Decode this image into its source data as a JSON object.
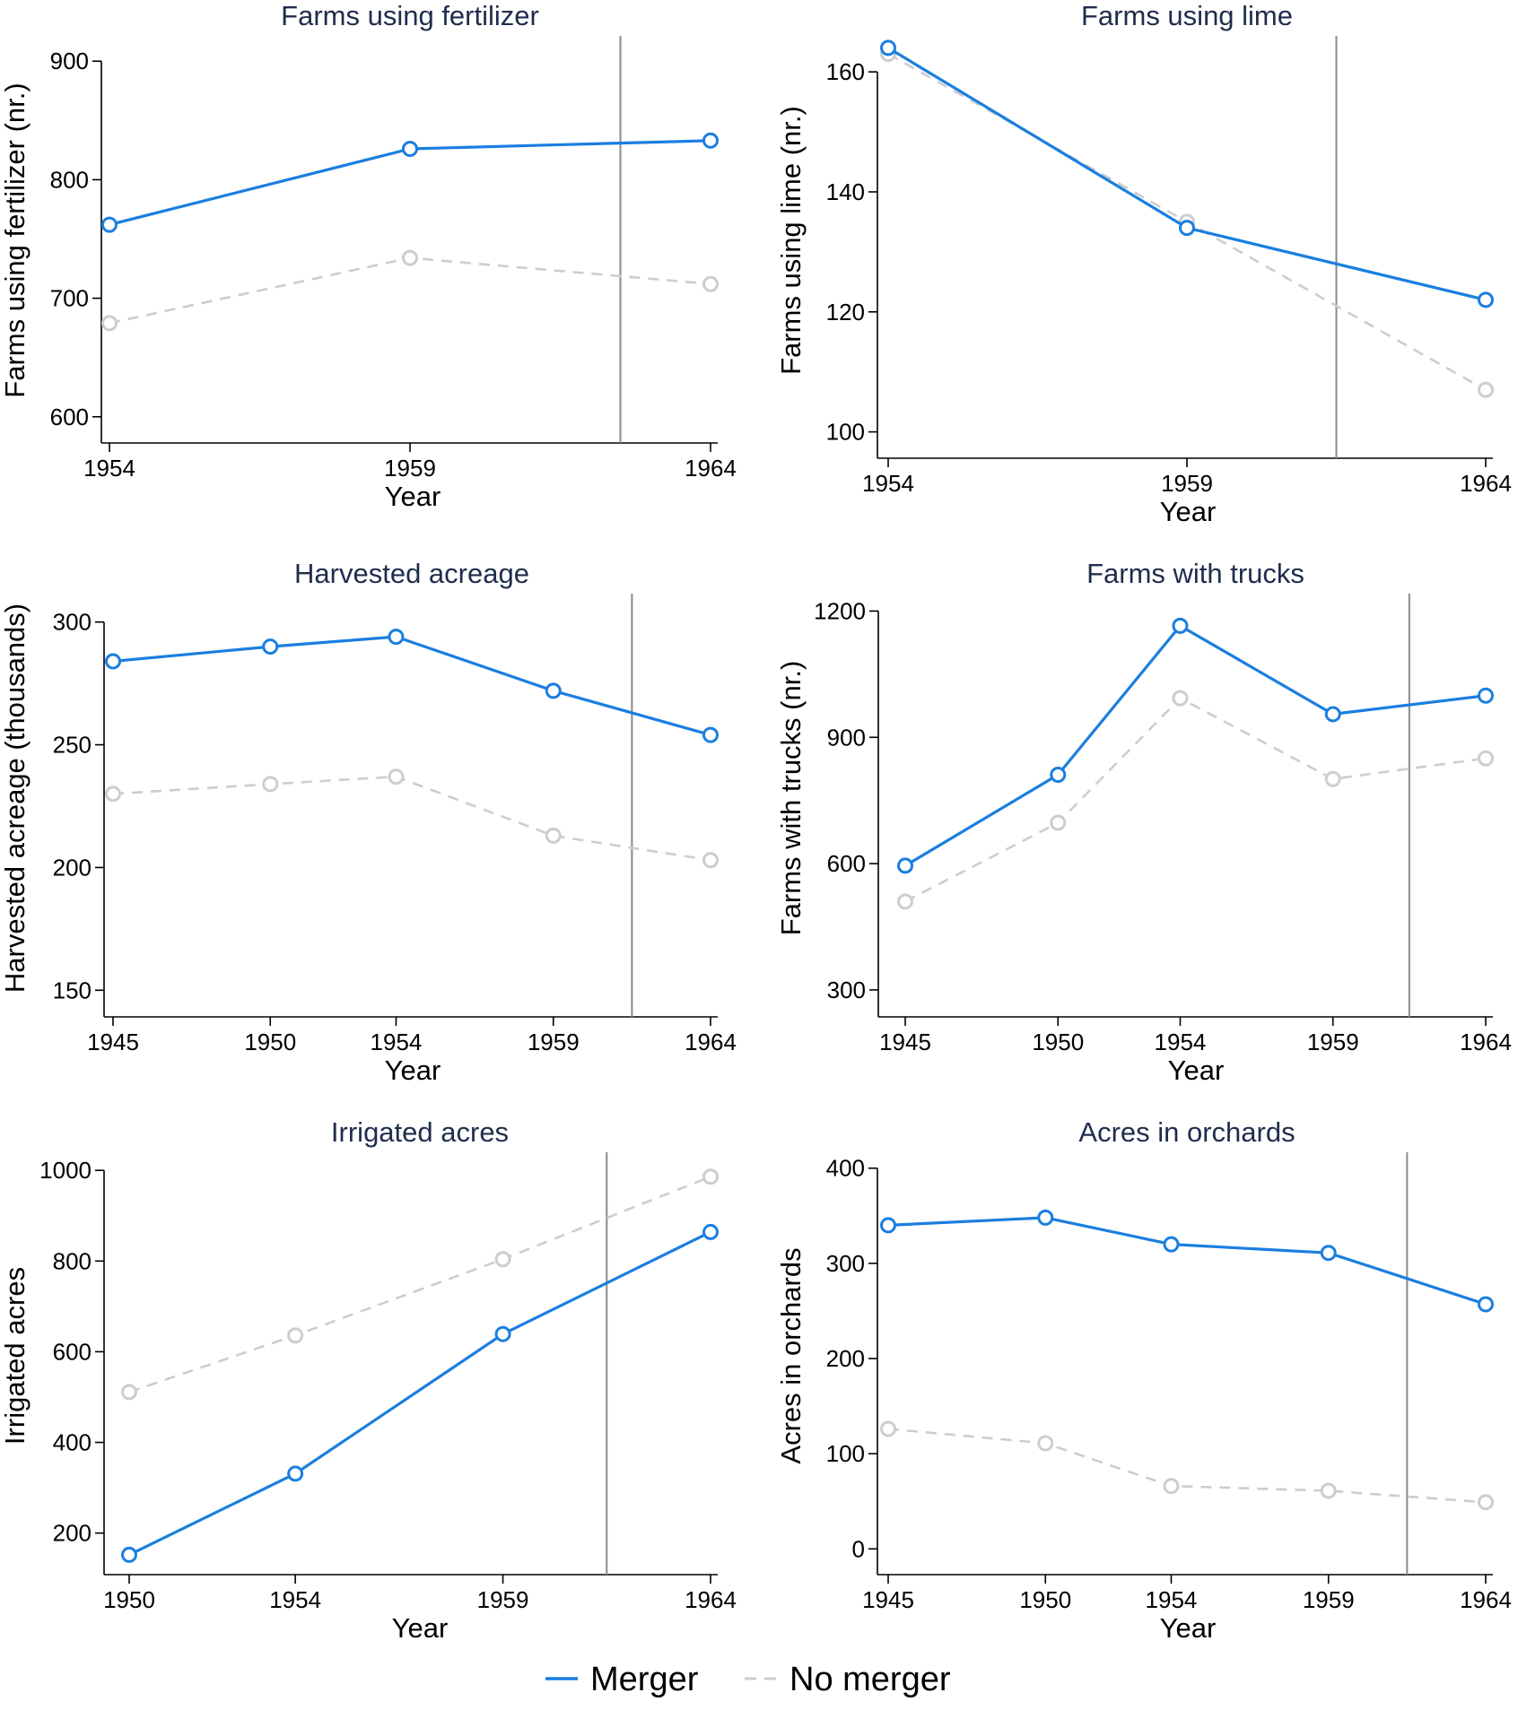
{
  "colors": {
    "merger": "#1a7ee0",
    "no_merger": "#cdcdcd",
    "title": "#1f2d4d",
    "vline": "#8a8a8a"
  },
  "legend": [
    {
      "name": "Merger",
      "color": "#1a7ee0",
      "style": "solid"
    },
    {
      "name": "No merger",
      "color": "#cdcdcd",
      "style": "dashed"
    }
  ],
  "chart_data": [
    {
      "type": "line",
      "title": "Farms using fertilizer",
      "xlabel": "Year",
      "ylabel": "Farms using fertilizer (nr.)",
      "x": [
        1954,
        1959,
        1964
      ],
      "xticks": [
        1954,
        1959,
        1964
      ],
      "yticks": [
        600,
        700,
        800,
        900
      ],
      "ylim": [
        590,
        910
      ],
      "vline": 1962.5,
      "series": [
        {
          "name": "Merger",
          "values": [
            762,
            826,
            833
          ]
        },
        {
          "name": "No merger",
          "values": [
            679,
            734,
            712
          ]
        }
      ]
    },
    {
      "type": "line",
      "title": "Farms using lime",
      "xlabel": "Year",
      "ylabel": "Farms using lime (nr.)",
      "x": [
        1954,
        1959,
        1964
      ],
      "xticks": [
        1954,
        1959,
        1964
      ],
      "yticks": [
        100,
        120,
        140,
        160
      ],
      "ylim": [
        98,
        166
      ],
      "vline": 1961.5,
      "series": [
        {
          "name": "Merger",
          "values": [
            164,
            134,
            122
          ]
        },
        {
          "name": "No merger",
          "values": [
            163,
            135,
            107
          ]
        }
      ]
    },
    {
      "type": "line",
      "title": "Harvested acreage",
      "xlabel": "Year",
      "ylabel": "Harvested acreage (thousands)",
      "x": [
        1945,
        1950,
        1954,
        1959,
        1964
      ],
      "xticks": [
        1945,
        1950,
        1954,
        1959,
        1964
      ],
      "yticks": [
        150,
        200,
        250,
        300
      ],
      "ylim": [
        145,
        305
      ],
      "vline": 1961.5,
      "series": [
        {
          "name": "Merger",
          "values": [
            284,
            290,
            294,
            272,
            254
          ]
        },
        {
          "name": "No merger",
          "values": [
            230,
            234,
            237,
            213,
            203
          ]
        }
      ]
    },
    {
      "type": "line",
      "title": "Farms with trucks",
      "xlabel": "Year",
      "ylabel": "Farms with trucks (nr.)",
      "x": [
        1945,
        1950,
        1954,
        1959,
        1964
      ],
      "xticks": [
        1945,
        1950,
        1954,
        1959,
        1964
      ],
      "yticks": [
        300,
        600,
        900,
        1200
      ],
      "ylim": [
        270,
        1235
      ],
      "vline": 1961.5,
      "series": [
        {
          "name": "Merger",
          "values": [
            595,
            811,
            1165,
            955,
            999
          ]
        },
        {
          "name": "No merger",
          "values": [
            510,
            697,
            993,
            801,
            850
          ]
        }
      ]
    },
    {
      "type": "line",
      "title": "Irrigated acres",
      "xlabel": "Year",
      "ylabel": "Irrigated acres",
      "x": [
        1950,
        1954,
        1959,
        1964
      ],
      "xticks": [
        1950,
        1954,
        1959,
        1964
      ],
      "yticks": [
        200,
        400,
        600,
        800,
        1000
      ],
      "ylim": [
        140,
        1030
      ],
      "vline": 1961.5,
      "series": [
        {
          "name": "Merger",
          "values": [
            152,
            331,
            639,
            864
          ]
        },
        {
          "name": "No merger",
          "values": [
            511,
            636,
            804,
            986
          ]
        }
      ]
    },
    {
      "type": "line",
      "title": "Acres in orchards",
      "xlabel": "Year",
      "ylabel": "Acres in orchards",
      "x": [
        1945,
        1950,
        1954,
        1959,
        1964
      ],
      "xticks": [
        1945,
        1950,
        1954,
        1959,
        1964
      ],
      "yticks": [
        0,
        100,
        200,
        300,
        400
      ],
      "ylim": [
        -12,
        412
      ],
      "vline": 1961.5,
      "series": [
        {
          "name": "Merger",
          "values": [
            340,
            348,
            320,
            311,
            257
          ]
        },
        {
          "name": "No merger",
          "values": [
            126,
            111,
            66,
            61,
            49
          ]
        }
      ]
    }
  ]
}
